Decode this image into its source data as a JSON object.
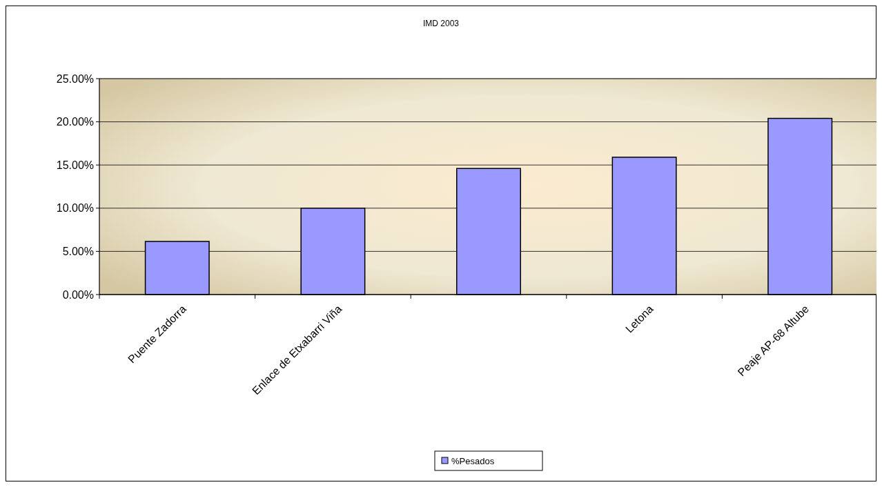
{
  "chart_data": {
    "type": "bar",
    "title": "IMD 2003",
    "categories": [
      "Puente Zadorra",
      "Enlace de Etxabarri Viña",
      null,
      "Letona",
      "Peaje AP-68 Altube"
    ],
    "series": [
      {
        "name": "%Pesados",
        "color": "#9999ff",
        "values": [
          6.15,
          10.0,
          14.6,
          15.9,
          20.4
        ]
      }
    ],
    "ylim": [
      0,
      25
    ],
    "yticks": [
      {
        "value": 0,
        "label": "0.00%"
      },
      {
        "value": 5,
        "label": "5.00%"
      },
      {
        "value": 10,
        "label": "10.00%"
      },
      {
        "value": 15,
        "label": "15.00%"
      },
      {
        "value": 20,
        "label": "20.00%"
      },
      {
        "value": 25,
        "label": "25.00%"
      }
    ],
    "grid": "y",
    "legend": "bottom"
  }
}
